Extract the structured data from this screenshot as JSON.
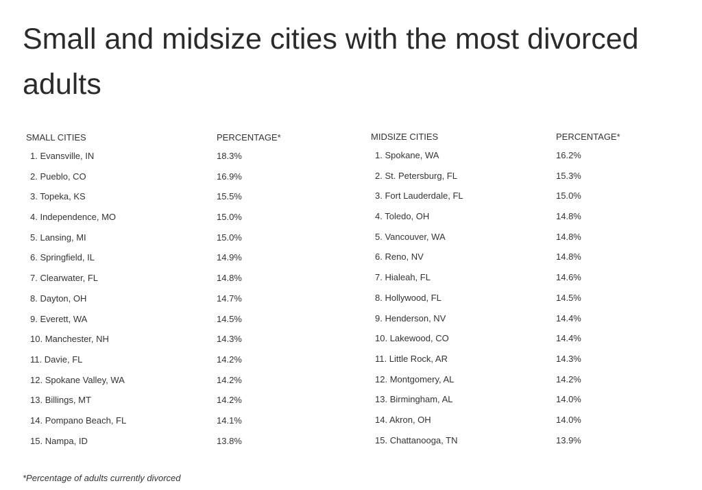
{
  "title": "Small and midsize cities with the most divorced adults",
  "small_table": {
    "header_city": "SMALL CITIES",
    "header_pct": "PERCENTAGE*",
    "rows": [
      {
        "rank": "1",
        "city": "Evansville, IN",
        "pct": "18.3%"
      },
      {
        "rank": "2",
        "city": "Pueblo, CO",
        "pct": "16.9%"
      },
      {
        "rank": "3",
        "city": "Topeka, KS",
        "pct": "15.5%"
      },
      {
        "rank": "4",
        "city": "Independence, MO",
        "pct": "15.0%"
      },
      {
        "rank": "5",
        "city": "Lansing, MI",
        "pct": "15.0%"
      },
      {
        "rank": "6",
        "city": "Springfield, IL",
        "pct": "14.9%"
      },
      {
        "rank": "7",
        "city": "Clearwater, FL",
        "pct": "14.8%"
      },
      {
        "rank": "8",
        "city": "Dayton, OH",
        "pct": "14.7%"
      },
      {
        "rank": "9",
        "city": "Everett, WA",
        "pct": "14.5%"
      },
      {
        "rank": "10",
        "city": "Manchester, NH",
        "pct": "14.3%"
      },
      {
        "rank": "11",
        "city": "Davie, FL",
        "pct": "14.2%"
      },
      {
        "rank": "12",
        "city": "Spokane Valley, WA",
        "pct": "14.2%"
      },
      {
        "rank": "13",
        "city": "Billings, MT",
        "pct": "14.2%"
      },
      {
        "rank": "14",
        "city": "Pompano Beach, FL",
        "pct": "14.1%"
      },
      {
        "rank": "15",
        "city": "Nampa, ID",
        "pct": "13.8%"
      }
    ]
  },
  "mid_table": {
    "header_city": "MIDSIZE CITIES",
    "header_pct": "PERCENTAGE*",
    "rows": [
      {
        "rank": "1",
        "city": "Spokane, WA",
        "pct": "16.2%"
      },
      {
        "rank": "2",
        "city": "St. Petersburg, FL",
        "pct": "15.3%"
      },
      {
        "rank": "3",
        "city": "Fort Lauderdale, FL",
        "pct": "15.0%"
      },
      {
        "rank": "4",
        "city": "Toledo, OH",
        "pct": "14.8%"
      },
      {
        "rank": "5",
        "city": "Vancouver, WA",
        "pct": "14.8%"
      },
      {
        "rank": "6",
        "city": "Reno, NV",
        "pct": "14.8%"
      },
      {
        "rank": "7",
        "city": "Hialeah, FL",
        "pct": "14.6%"
      },
      {
        "rank": "8",
        "city": "Hollywood, FL",
        "pct": "14.5%"
      },
      {
        "rank": "9",
        "city": "Henderson, NV",
        "pct": "14.4%"
      },
      {
        "rank": "10",
        "city": "Lakewood, CO",
        "pct": "14.4%"
      },
      {
        "rank": "11",
        "city": "Little Rock, AR",
        "pct": "14.3%"
      },
      {
        "rank": "12",
        "city": "Montgomery, AL",
        "pct": "14.2%"
      },
      {
        "rank": "13",
        "city": "Birmingham, AL",
        "pct": "14.0%"
      },
      {
        "rank": "14",
        "city": "Akron, OH",
        "pct": "14.0%"
      },
      {
        "rank": "15",
        "city": "Chattanooga, TN",
        "pct": "13.9%"
      }
    ]
  },
  "footnote": "*Percentage of adults currently divorced"
}
